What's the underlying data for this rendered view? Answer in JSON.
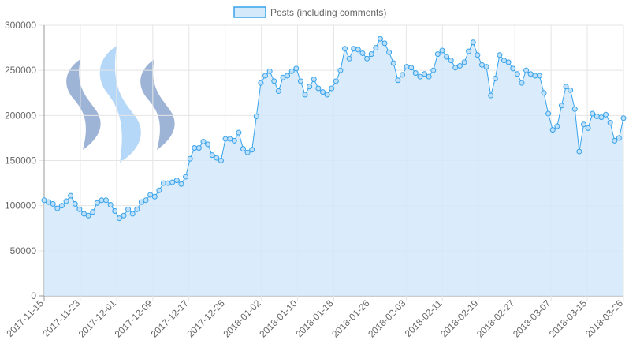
{
  "chart_data": {
    "type": "area",
    "legend": {
      "position": "top-center"
    },
    "series": [
      {
        "name": "Posts (including comments)",
        "color": "#36a2eb",
        "fill": "#d4e9fa",
        "values": [
          106000,
          104000,
          102000,
          97000,
          100000,
          105000,
          111000,
          102000,
          96000,
          91000,
          89000,
          93000,
          103000,
          106000,
          106000,
          101000,
          94000,
          86000,
          89000,
          96000,
          91000,
          96000,
          104000,
          106000,
          112000,
          110000,
          117000,
          125000,
          125000,
          126000,
          128000,
          124000,
          132000,
          152000,
          164000,
          164000,
          171000,
          168000,
          156000,
          153000,
          150000,
          174000,
          174000,
          172000,
          181000,
          163000,
          159000,
          162000,
          199000,
          236000,
          244000,
          249000,
          238000,
          227000,
          242000,
          244000,
          249000,
          252000,
          238000,
          223000,
          232000,
          240000,
          230000,
          226000,
          223000,
          230000,
          238000,
          250000,
          274000,
          263000,
          274000,
          273000,
          269000,
          263000,
          268000,
          275000,
          285000,
          280000,
          270000,
          258000,
          239000,
          245000,
          254000,
          253000,
          247000,
          243000,
          246000,
          243000,
          250000,
          268000,
          272000,
          265000,
          261000,
          253000,
          255000,
          259000,
          271000,
          281000,
          267000,
          256000,
          254000,
          222000,
          241000,
          267000,
          261000,
          259000,
          252000,
          246000,
          236000,
          250000,
          246000,
          244000,
          244000,
          225000,
          202000,
          184000,
          188000,
          211000,
          232000,
          228000,
          207000,
          160000,
          190000,
          186000,
          202000,
          199000,
          198000,
          201000,
          192000,
          172000,
          175000,
          197000
        ]
      }
    ],
    "x_tick_labels": [
      "2017-11-15",
      "2017-11-23",
      "2017-12-01",
      "2017-12-09",
      "2017-12-17",
      "2017-12-25",
      "2018-01-02",
      "2018-01-10",
      "2018-01-18",
      "2018-01-26",
      "2018-02-03",
      "2018-02-11",
      "2018-02-19",
      "2018-02-27",
      "2018-03-07",
      "2018-03-15",
      "2018-03-26"
    ],
    "y_tick_labels": [
      "0",
      "50000",
      "100000",
      "150000",
      "200000",
      "250000",
      "300000"
    ],
    "ylim": [
      0,
      300000
    ],
    "grid": true
  }
}
